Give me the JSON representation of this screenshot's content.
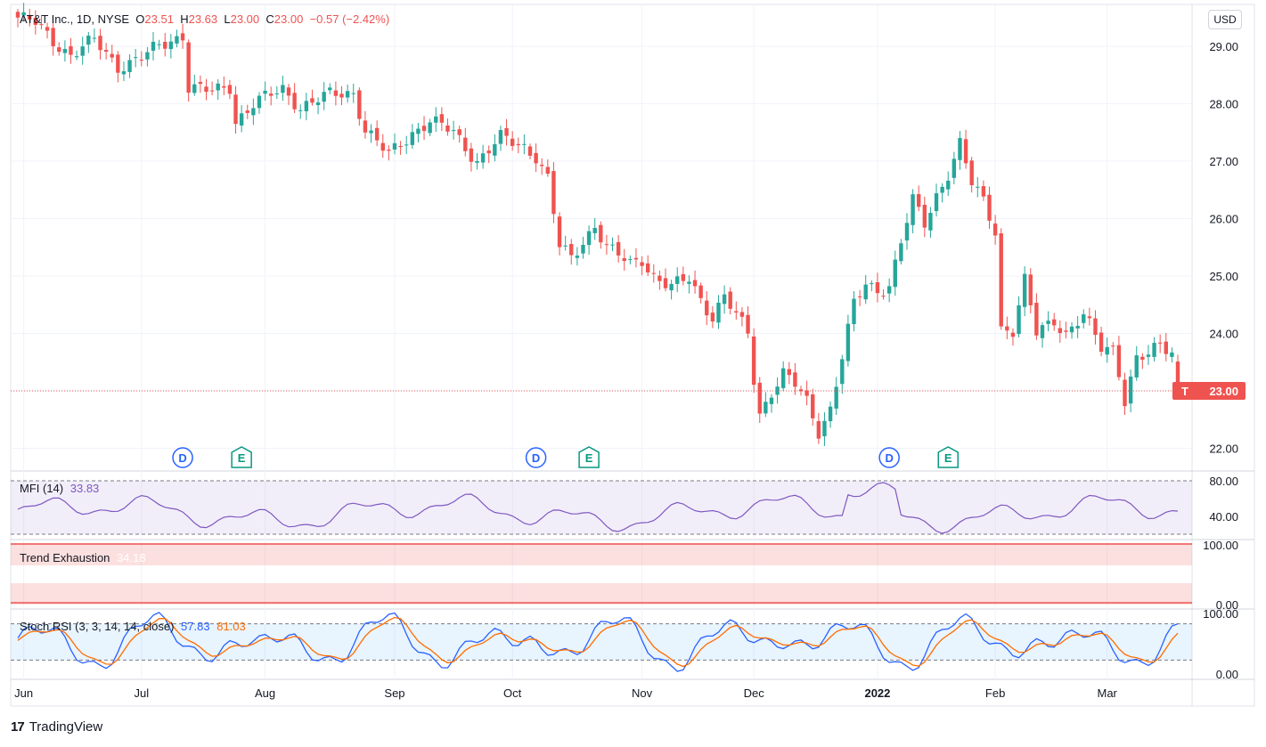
{
  "header": {
    "symbol": "AT&T Inc., 1D, NYSE",
    "o_label": "O",
    "o_value": "23.51",
    "h_label": "H",
    "h_value": "23.63",
    "l_label": "L",
    "l_value": "23.00",
    "c_label": "C",
    "c_value": "23.00",
    "change": "−0.57 (−2.42%)"
  },
  "currency_button": "USD",
  "brand": "TradingView",
  "colors": {
    "up": "#26a69a",
    "down": "#ef5350",
    "mfi": "#7e57c2",
    "stoch_k": "#2962ff",
    "stoch_d": "#ff6d00",
    "grid": "#f0f3fa",
    "axis_text": "#131722"
  },
  "price_label": {
    "ticker": "T",
    "value": "23.00"
  },
  "chart_data": {
    "type": "candlestick",
    "x_labels": [
      {
        "label": "Jun",
        "i": 1
      },
      {
        "label": "Jul",
        "i": 21
      },
      {
        "label": "Aug",
        "i": 42
      },
      {
        "label": "Sep",
        "i": 64
      },
      {
        "label": "Oct",
        "i": 84
      },
      {
        "label": "Nov",
        "i": 106
      },
      {
        "label": "Dec",
        "i": 125
      },
      {
        "label": "2022",
        "i": 146
      },
      {
        "label": "Feb",
        "i": 166
      },
      {
        "label": "Mar",
        "i": 185
      }
    ],
    "y_axis": {
      "ticks": [
        "29.00",
        "28.00",
        "27.00",
        "26.00",
        "25.00",
        "24.00",
        "22.00"
      ],
      "tick_values": [
        29,
        28,
        27,
        26,
        25,
        24,
        22
      ],
      "range": [
        21.6,
        29.7
      ]
    },
    "last_price": 23.0,
    "events": [
      {
        "type": "D",
        "i": 28
      },
      {
        "type": "E",
        "i": 38
      },
      {
        "type": "D",
        "i": 88
      },
      {
        "type": "E",
        "i": 97
      },
      {
        "type": "D",
        "i": 148
      },
      {
        "type": "E",
        "i": 158
      }
    ],
    "anchors": [
      [
        0,
        29.5
      ],
      [
        3,
        29.4
      ],
      [
        6,
        29.1
      ],
      [
        9,
        28.85
      ],
      [
        13,
        29.1
      ],
      [
        17,
        28.65
      ],
      [
        21,
        28.8
      ],
      [
        24,
        29.0
      ],
      [
        28,
        29.2
      ],
      [
        29,
        28.3
      ],
      [
        33,
        28.2
      ],
      [
        36,
        28.3
      ],
      [
        37,
        27.7
      ],
      [
        40,
        28.0
      ],
      [
        45,
        28.25
      ],
      [
        48,
        27.95
      ],
      [
        53,
        28.15
      ],
      [
        57,
        28.2
      ],
      [
        59,
        27.55
      ],
      [
        63,
        27.1
      ],
      [
        65,
        27.3
      ],
      [
        67,
        27.5
      ],
      [
        70,
        27.7
      ],
      [
        74,
        27.5
      ],
      [
        78,
        27.0
      ],
      [
        82,
        27.4
      ],
      [
        86,
        27.25
      ],
      [
        88,
        27.1
      ],
      [
        90,
        26.7
      ],
      [
        92,
        25.5
      ],
      [
        94,
        25.3
      ],
      [
        96,
        25.6
      ],
      [
        98,
        25.9
      ],
      [
        100,
        25.5
      ],
      [
        104,
        25.2
      ],
      [
        106,
        25.3
      ],
      [
        108,
        25.0
      ],
      [
        111,
        24.8
      ],
      [
        114,
        24.95
      ],
      [
        116,
        24.6
      ],
      [
        118,
        24.3
      ],
      [
        120,
        24.65
      ],
      [
        122,
        24.3
      ],
      [
        124,
        24.0
      ],
      [
        125,
        23.2
      ],
      [
        126,
        22.6
      ],
      [
        128,
        23.0
      ],
      [
        130,
        23.3
      ],
      [
        132,
        23.1
      ],
      [
        134,
        22.8
      ],
      [
        136,
        22.3
      ],
      [
        138,
        22.7
      ],
      [
        140,
        23.6
      ],
      [
        142,
        24.5
      ],
      [
        144,
        24.85
      ],
      [
        146,
        24.75
      ],
      [
        148,
        24.85
      ],
      [
        150,
        25.6
      ],
      [
        152,
        26.3
      ],
      [
        154,
        25.9
      ],
      [
        156,
        26.4
      ],
      [
        158,
        26.8
      ],
      [
        160,
        27.3
      ],
      [
        162,
        26.6
      ],
      [
        164,
        26.3
      ],
      [
        166,
        25.8
      ],
      [
        167,
        24.1
      ],
      [
        169,
        24.05
      ],
      [
        171,
        24.9
      ],
      [
        173,
        24.0
      ],
      [
        176,
        24.25
      ],
      [
        178,
        24.0
      ],
      [
        181,
        24.3
      ],
      [
        184,
        23.75
      ],
      [
        186,
        23.75
      ],
      [
        187,
        23.35
      ],
      [
        188,
        22.85
      ],
      [
        190,
        23.55
      ],
      [
        192,
        23.6
      ],
      [
        194,
        23.8
      ],
      [
        196,
        23.7
      ],
      [
        197,
        23.0
      ]
    ],
    "ohlc_last": {
      "open": 23.51,
      "high": 23.63,
      "low": 23.0,
      "close": 23.0
    },
    "indicators": [
      {
        "name": "MFI (14)",
        "value": "33.83",
        "ticks": [
          "80.00",
          "40.00"
        ],
        "bands": [
          80,
          20
        ]
      },
      {
        "name": "Trend Exhaustion",
        "value": "34.18",
        "ticks": [
          "100.00",
          "0.00"
        ]
      },
      {
        "name": "Stoch RSI (3, 3, 14, 14, close)",
        "k_value": "57.83",
        "d_value": "81.03",
        "ticks": [
          "100.00",
          "0.00"
        ],
        "bands": [
          80,
          20
        ]
      }
    ]
  }
}
